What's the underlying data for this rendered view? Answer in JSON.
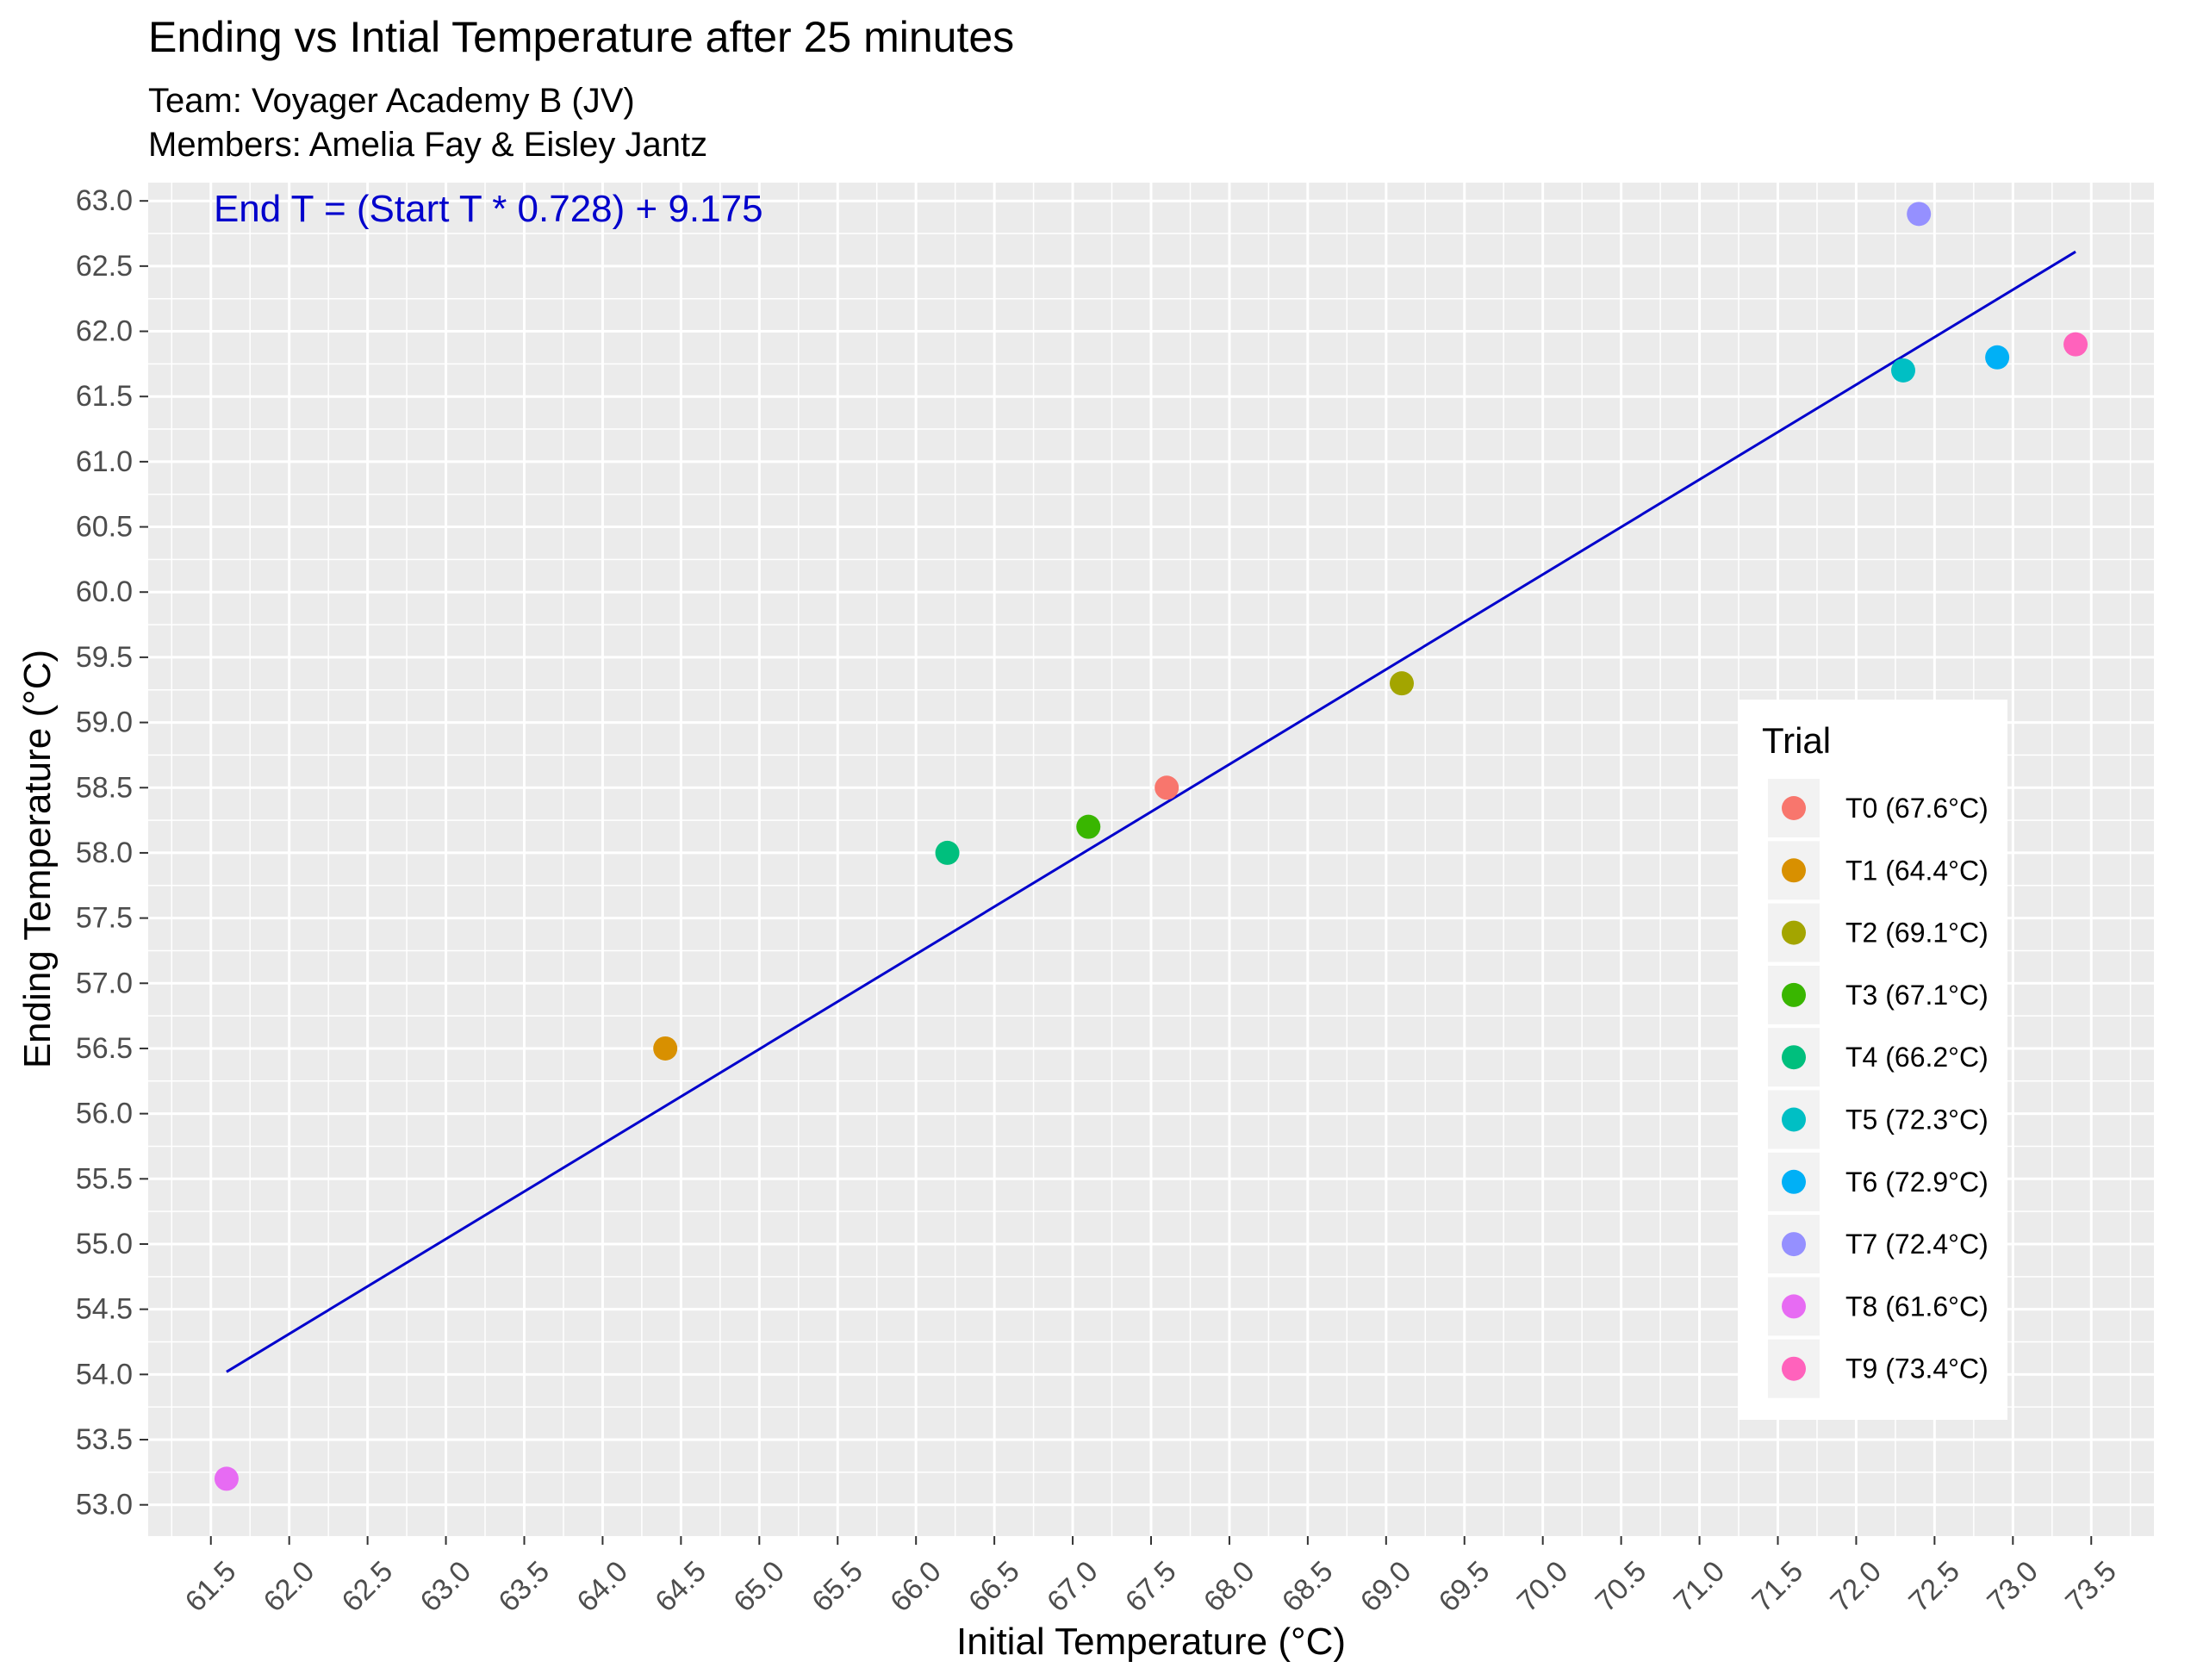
{
  "chart_data": {
    "type": "scatter",
    "title": "Ending vs Intial Temperature after 25 minutes",
    "subtitle_lines": [
      "Team: Voyager Academy B (JV)",
      "Members: Amelia Fay & Eisley Jantz"
    ],
    "xlabel": "Initial Temperature (°C)",
    "ylabel": "Ending Temperature (°C)",
    "xlim": [
      61.1,
      73.9
    ],
    "ylim": [
      52.76,
      63.14
    ],
    "x_ticks": [
      "61.5",
      "62.0",
      "62.5",
      "63.0",
      "63.5",
      "64.0",
      "64.5",
      "65.0",
      "65.5",
      "66.0",
      "66.5",
      "67.0",
      "67.5",
      "68.0",
      "68.5",
      "69.0",
      "69.5",
      "70.0",
      "70.5",
      "71.0",
      "71.5",
      "72.0",
      "72.5",
      "73.0",
      "73.5"
    ],
    "y_ticks": [
      "53.0",
      "53.5",
      "54.0",
      "54.5",
      "55.0",
      "55.5",
      "56.0",
      "56.5",
      "57.0",
      "57.5",
      "58.0",
      "58.5",
      "59.0",
      "59.5",
      "60.0",
      "60.5",
      "61.0",
      "61.5",
      "62.0",
      "62.5",
      "63.0"
    ],
    "grid": true,
    "annotation": {
      "text": "End T = (Start T * 0.728) + 9.175",
      "x": 61.6,
      "y": 62.95,
      "color": "#0000cc"
    },
    "fit_line": {
      "slope": 0.728,
      "intercept": 9.175,
      "x_range": [
        61.6,
        73.4
      ],
      "color": "#0000cc"
    },
    "legend": {
      "title": "Trial",
      "placement": "right-inside",
      "entries": [
        {
          "label": "T0 (67.6°C)",
          "color": "#F8766D"
        },
        {
          "label": "T1 (64.4°C)",
          "color": "#D89000"
        },
        {
          "label": "T2 (69.1°C)",
          "color": "#A3A500"
        },
        {
          "label": "T3 (67.1°C)",
          "color": "#39B600"
        },
        {
          "label": "T4 (66.2°C)",
          "color": "#00BF7D"
        },
        {
          "label": "T5 (72.3°C)",
          "color": "#00BFC4"
        },
        {
          "label": "T6 (72.9°C)",
          "color": "#00B0F6"
        },
        {
          "label": "T7 (72.4°C)",
          "color": "#9590FF"
        },
        {
          "label": "T8 (61.6°C)",
          "color": "#E76BF3"
        },
        {
          "label": "T9 (73.4°C)",
          "color": "#FF62BC"
        }
      ]
    },
    "points": [
      {
        "series": "T0 (67.6°C)",
        "x": 67.6,
        "y": 58.5,
        "color": "#F8766D"
      },
      {
        "series": "T1 (64.4°C)",
        "x": 64.4,
        "y": 56.5,
        "color": "#D89000"
      },
      {
        "series": "T2 (69.1°C)",
        "x": 69.1,
        "y": 59.3,
        "color": "#A3A500"
      },
      {
        "series": "T3 (67.1°C)",
        "x": 67.1,
        "y": 58.2,
        "color": "#39B600"
      },
      {
        "series": "T4 (66.2°C)",
        "x": 66.2,
        "y": 58.0,
        "color": "#00BF7D"
      },
      {
        "series": "T5 (72.3°C)",
        "x": 72.3,
        "y": 61.7,
        "color": "#00BFC4"
      },
      {
        "series": "T6 (72.9°C)",
        "x": 72.9,
        "y": 61.8,
        "color": "#00B0F6"
      },
      {
        "series": "T7 (72.4°C)",
        "x": 72.4,
        "y": 62.9,
        "color": "#9590FF"
      },
      {
        "series": "T8 (61.6°C)",
        "x": 61.6,
        "y": 53.2,
        "color": "#E76BF3"
      },
      {
        "series": "T9 (73.4°C)",
        "x": 73.4,
        "y": 61.9,
        "color": "#FF62BC"
      }
    ]
  }
}
